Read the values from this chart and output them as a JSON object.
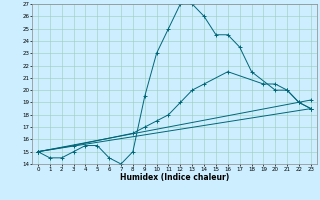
{
  "title": "",
  "xlabel": "Humidex (Indice chaleur)",
  "ylabel": "",
  "background_color": "#cceeff",
  "line_color": "#006677",
  "grid_color": "#99ccbb",
  "xlim": [
    -0.5,
    23.5
  ],
  "ylim": [
    14,
    27
  ],
  "yticks": [
    14,
    15,
    16,
    17,
    18,
    19,
    20,
    21,
    22,
    23,
    24,
    25,
    26,
    27
  ],
  "xticks": [
    0,
    1,
    2,
    3,
    4,
    5,
    6,
    7,
    8,
    9,
    10,
    11,
    12,
    13,
    14,
    15,
    16,
    17,
    18,
    19,
    20,
    21,
    22,
    23
  ],
  "series": [
    {
      "x": [
        0,
        1,
        2,
        3,
        4,
        5,
        6,
        7,
        8,
        9,
        10,
        11,
        12,
        13,
        14,
        15,
        16,
        17,
        18,
        20,
        21,
        22,
        23
      ],
      "y": [
        15,
        14.5,
        14.5,
        15,
        15.5,
        15.5,
        14.5,
        14,
        15,
        19.5,
        23,
        25,
        27,
        27,
        26,
        24.5,
        24.5,
        23.5,
        21.5,
        20,
        20,
        19,
        18.5
      ]
    },
    {
      "x": [
        0,
        3,
        8,
        9,
        10,
        11,
        12,
        13,
        14,
        16,
        19,
        20,
        21,
        22,
        23
      ],
      "y": [
        15,
        15.5,
        16.5,
        17,
        17.5,
        18,
        19,
        20,
        20.5,
        21.5,
        20.5,
        20.5,
        20,
        19,
        18.5
      ]
    },
    {
      "x": [
        0,
        23
      ],
      "y": [
        15,
        18.5
      ]
    },
    {
      "x": [
        0,
        23
      ],
      "y": [
        15,
        19.2
      ]
    }
  ]
}
